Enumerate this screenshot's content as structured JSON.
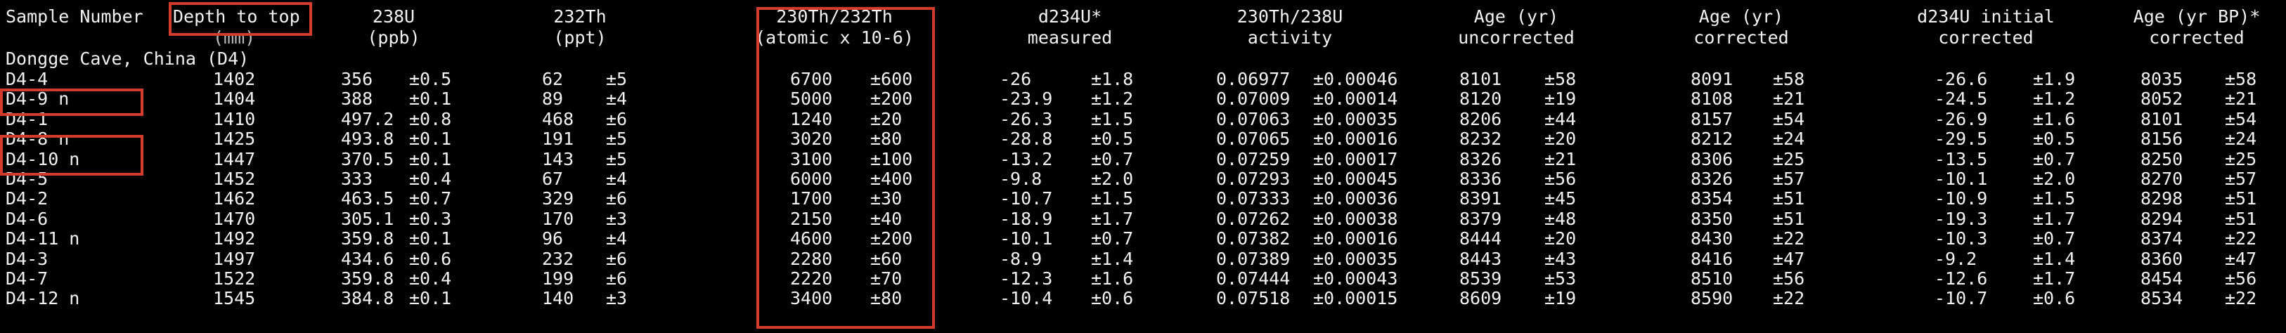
{
  "headers": {
    "sample_number": "Sample Number",
    "depth_line1": "Depth to top",
    "depth_line2": "(mm)",
    "u238_line1": "238U",
    "u238_line2": "(ppb)",
    "th232_line1": "232Th",
    "th232_line2": "(ppt)",
    "th230_th232_line1": "230Th/232Th",
    "th230_th232_line2": "(atomic x 10-6)",
    "d234u_meas_line1": "d234U*",
    "d234u_meas_line2": "measured",
    "th230_u238_line1": "230Th/238U",
    "th230_u238_line2": "activity",
    "age_unc_line1": "Age (yr)",
    "age_unc_line2": "uncorrected",
    "age_cor_line1": "Age (yr)",
    "age_cor_line2": "corrected",
    "d234u_init_line1": "d234U initial",
    "d234u_init_line2": "corrected",
    "age_bp_line1": "Age (yr BP)*",
    "age_bp_line2": "corrected"
  },
  "section_label": "Dongge Cave, China (D4)",
  "rows": [
    [
      "D4-4",
      "1402",
      "356",
      "±0.5",
      "62",
      "±5",
      "6700",
      "±600",
      "-26",
      "±1.8",
      "0.06977",
      "±0.00046",
      "8101",
      "±58",
      "8091",
      "±58",
      "-26.6",
      "±1.9",
      "8035",
      "±58"
    ],
    [
      "D4-9 n",
      "1404",
      "388",
      "±0.1",
      "89",
      "±4",
      "5000",
      "±200",
      "-23.9",
      "±1.2",
      "0.07009",
      "±0.00014",
      "8120",
      "±19",
      "8108",
      "±21",
      "-24.5",
      "±1.2",
      "8052",
      "±21"
    ],
    [
      "D4-1",
      "1410",
      "497.2",
      "±0.8",
      "468",
      "±6",
      "1240",
      "±20",
      "-26.3",
      "±1.5",
      "0.07063",
      "±0.00035",
      "8206",
      "±44",
      "8157",
      "±54",
      "-26.9",
      "±1.6",
      "8101",
      "±54"
    ],
    [
      "D4-8 n",
      "1425",
      "493.8",
      "±0.1",
      "191",
      "±5",
      "3020",
      "±80",
      "-28.8",
      "±0.5",
      "0.07065",
      "±0.00016",
      "8232",
      "±20",
      "8212",
      "±24",
      "-29.5",
      "±0.5",
      "8156",
      "±24"
    ],
    [
      "D4-10 n",
      "1447",
      "370.5",
      "±0.1",
      "143",
      "±5",
      "3100",
      "±100",
      "-13.2",
      "±0.7",
      "0.07259",
      "±0.00017",
      "8326",
      "±21",
      "8306",
      "±25",
      "-13.5",
      "±0.7",
      "8250",
      "±25"
    ],
    [
      "D4-5",
      "1452",
      "333",
      "±0.4",
      "67",
      "±4",
      "6000",
      "±400",
      "-9.8",
      "±2.0",
      "0.07293",
      "±0.00045",
      "8336",
      "±56",
      "8326",
      "±57",
      "-10.1",
      "±2.0",
      "8270",
      "±57"
    ],
    [
      "D4-2",
      "1462",
      "463.5",
      "±0.7",
      "329",
      "±6",
      "1700",
      "±30",
      "-10.7",
      "±1.5",
      "0.07333",
      "±0.00036",
      "8391",
      "±45",
      "8354",
      "±51",
      "-10.9",
      "±1.5",
      "8298",
      "±51"
    ],
    [
      "D4-6",
      "1470",
      "305.1",
      "±0.3",
      "170",
      "±3",
      "2150",
      "±40",
      "-18.9",
      "±1.7",
      "0.07262",
      "±0.00038",
      "8379",
      "±48",
      "8350",
      "±51",
      "-19.3",
      "±1.7",
      "8294",
      "±51"
    ],
    [
      "D4-11 n",
      "1492",
      "359.8",
      "±0.1",
      "96",
      "±4",
      "4600",
      "±200",
      "-10.1",
      "±0.7",
      "0.07382",
      "±0.00016",
      "8444",
      "±20",
      "8430",
      "±22",
      "-10.3",
      "±0.7",
      "8374",
      "±22"
    ],
    [
      "D4-3",
      "1497",
      "434.6",
      "±0.6",
      "232",
      "±6",
      "2280",
      "±60",
      "-8.9",
      "±1.4",
      "0.07389",
      "±0.00035",
      "8443",
      "±43",
      "8416",
      "±47",
      "-9.2",
      "±1.4",
      "8360",
      "±47"
    ],
    [
      "D4-7",
      "1522",
      "359.8",
      "±0.4",
      "199",
      "±6",
      "2220",
      "±70",
      "-12.3",
      "±1.6",
      "0.07444",
      "±0.00043",
      "8539",
      "±53",
      "8510",
      "±56",
      "-12.6",
      "±1.7",
      "8454",
      "±56"
    ],
    [
      "D4-12 n",
      "1545",
      "384.8",
      "±0.1",
      "140",
      "±3",
      "3400",
      "±80",
      "-10.4",
      "±0.6",
      "0.07518",
      "±0.00015",
      "8609",
      "±19",
      "8590",
      "±22",
      "-10.7",
      "±0.6",
      "8534",
      "±22"
    ]
  ],
  "colors": {
    "background": "#000000",
    "text": "#f2f2f2",
    "highlight": "#d33b2c"
  }
}
